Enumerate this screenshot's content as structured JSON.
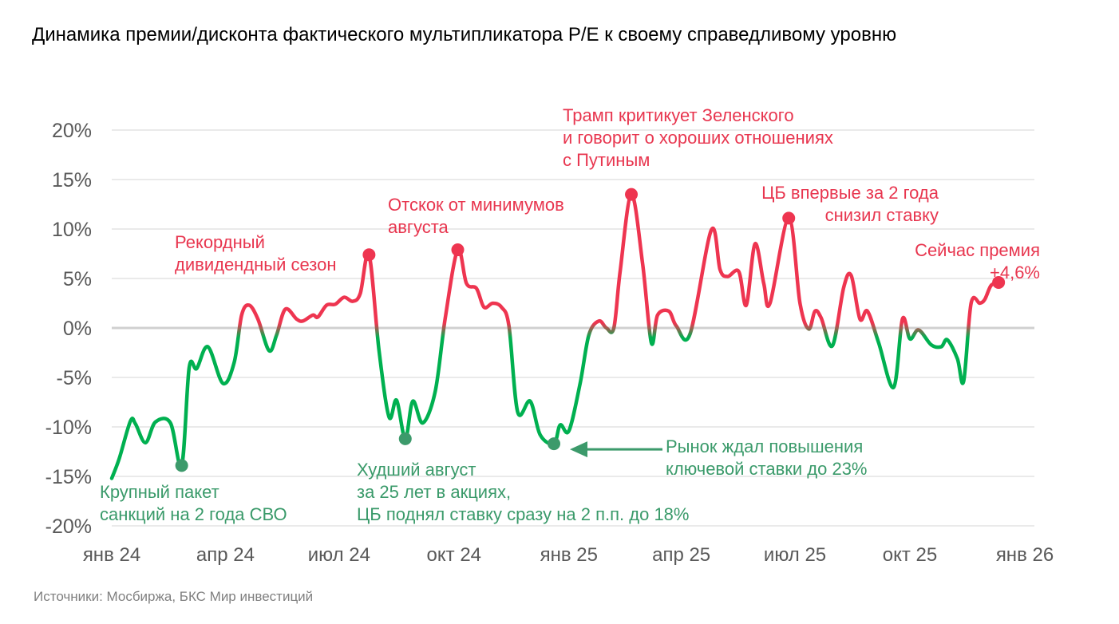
{
  "title": "Динамика премии/дисконта фактического мультипликатора P/E к своему справедливому уровню",
  "source": "Источники: Мосбиржа, БКС Мир инвестиций",
  "colors": {
    "positive": "#ee3550",
    "negative": "#00b050",
    "negative_marker": "#3c9a6b",
    "zero_line": "#d0d0d0",
    "grid": "#e4e4e4"
  },
  "chart_data": {
    "type": "line",
    "title": "Динамика премии/дисконта фактического мультипликатора P/E к своему справедливому уровню",
    "xlabel": "",
    "ylabel": "",
    "ylim": [
      -20,
      20
    ],
    "xlim": [
      "2024-01-01",
      "2026-01-01"
    ],
    "grid": true,
    "y_ticks": [
      "20%",
      "15%",
      "10%",
      "5%",
      "0%",
      "-5%",
      "-10%",
      "-15%",
      "-20%"
    ],
    "y_tick_values": [
      20,
      15,
      10,
      5,
      0,
      -5,
      -10,
      -15,
      -20
    ],
    "x_ticks": [
      "янв 24",
      "апр 24",
      "июл 24",
      "окт 24",
      "янв 25",
      "апр 25",
      "июл 25",
      "окт 25",
      "янв 26"
    ],
    "x_tick_dates": [
      "2024-01-01",
      "2024-04-01",
      "2024-07-01",
      "2024-10-01",
      "2025-01-01",
      "2025-04-01",
      "2025-07-01",
      "2025-10-01",
      "2026-01-01"
    ],
    "series": [
      {
        "x": [
          "2024-01-01",
          "2024-01-07",
          "2024-01-16",
          "2024-01-20",
          "2024-01-28",
          "2024-02-05",
          "2024-02-17",
          "2024-02-26",
          "2024-03-03",
          "2024-03-09",
          "2024-03-18",
          "2024-03-30",
          "2024-04-08",
          "2024-04-14",
          "2024-04-20",
          "2024-04-27",
          "2024-05-06",
          "2024-05-12",
          "2024-05-19",
          "2024-05-28",
          "2024-06-02",
          "2024-06-10",
          "2024-06-14",
          "2024-06-21",
          "2024-06-28",
          "2024-07-05",
          "2024-07-12",
          "2024-07-18",
          "2024-07-25",
          "2024-08-02",
          "2024-08-10",
          "2024-08-16",
          "2024-08-23",
          "2024-08-29",
          "2024-09-06",
          "2024-09-16",
          "2024-09-24",
          "2024-10-04",
          "2024-10-11",
          "2024-10-19",
          "2024-10-25",
          "2024-11-01",
          "2024-11-08",
          "2024-11-14",
          "2024-11-21",
          "2024-12-01",
          "2024-12-09",
          "2024-12-20",
          "2024-12-25",
          "2025-01-01",
          "2025-01-10",
          "2025-01-17",
          "2025-01-25",
          "2025-01-31",
          "2025-02-06",
          "2025-02-11",
          "2025-02-20",
          "2025-03-01",
          "2025-03-08",
          "2025-03-13",
          "2025-03-22",
          "2025-03-28",
          "2025-04-08",
          "2025-04-25",
          "2025-05-02",
          "2025-05-08",
          "2025-05-17",
          "2025-05-23",
          "2025-05-30",
          "2025-06-06",
          "2025-06-11",
          "2025-06-26",
          "2025-07-05",
          "2025-07-12",
          "2025-07-17",
          "2025-07-22",
          "2025-07-31",
          "2025-08-09",
          "2025-08-15",
          "2025-08-22",
          "2025-08-28",
          "2025-09-06",
          "2025-09-18",
          "2025-09-25",
          "2025-10-01",
          "2025-10-08",
          "2025-10-18",
          "2025-10-26",
          "2025-10-31",
          "2025-11-08",
          "2025-11-13",
          "2025-11-19",
          "2025-11-26",
          "2025-11-30",
          "2025-12-05",
          "2025-12-11"
        ],
        "y": [
          -15.2,
          -13.2,
          -9.4,
          -9.7,
          -11.6,
          -9.5,
          -9.6,
          -13.9,
          -4.0,
          -4.1,
          -1.9,
          -5.6,
          -3.5,
          1.3,
          2.3,
          0.9,
          -2.3,
          -0.7,
          1.9,
          0.9,
          0.7,
          1.3,
          1.1,
          2.3,
          2.4,
          3.1,
          2.7,
          3.5,
          7.4,
          -2.3,
          -9.0,
          -7.3,
          -11.2,
          -7.4,
          -9.6,
          -6.4,
          1.0,
          7.9,
          4.5,
          4.0,
          2.1,
          2.5,
          2.1,
          0.2,
          -8.5,
          -7.4,
          -10.8,
          -11.7,
          -9.8,
          -10.4,
          -5.6,
          -0.7,
          0.7,
          0.0,
          0.0,
          5.7,
          13.5,
          6.5,
          -1.5,
          1.3,
          1.7,
          0.2,
          -0.6,
          9.9,
          5.9,
          5.2,
          5.7,
          2.3,
          8.5,
          4.5,
          2.5,
          11.1,
          2.5,
          -0.1,
          1.7,
          1.0,
          -1.8,
          4.1,
          5.3,
          0.9,
          1.7,
          -1.5,
          -6.0,
          0.9,
          -1.1,
          -0.2,
          -1.7,
          -1.9,
          -1.2,
          -3.1,
          -5.4,
          2.5,
          2.5,
          2.9,
          4.3,
          4.6
        ]
      }
    ],
    "annotations": [
      {
        "id": "sanctions",
        "date": "2024-02-26",
        "value": -13.9,
        "color": "green",
        "lines": [
          "Крупный пакет",
          "санкций на 2 года СВО"
        ]
      },
      {
        "id": "dividends",
        "date": "2024-07-25",
        "value": 7.4,
        "color": "red",
        "lines": [
          "Рекордный",
          "дивидендный сезон"
        ]
      },
      {
        "id": "august",
        "date": "2024-08-23",
        "value": -11.2,
        "color": "green",
        "lines": [
          "Худший август",
          "за 25 лет в акциях,",
          "ЦБ поднял ставку сразу на 2 п.п. до 18%"
        ]
      },
      {
        "id": "rebound",
        "date": "2024-10-04",
        "value": 7.9,
        "color": "red",
        "lines": [
          "Отскок от минимумов",
          "августа"
        ]
      },
      {
        "id": "rate23",
        "date": "2024-12-20",
        "value": -11.7,
        "color": "green",
        "arrow": true,
        "lines": [
          "Рынок ждал повышения",
          "ключевой ставки до 23%"
        ]
      },
      {
        "id": "trump",
        "date": "2025-02-20",
        "value": 13.5,
        "color": "red",
        "lines": [
          "Трамп критикует Зеленского",
          "и говорит о хороших отношениях",
          "с Путиным"
        ]
      },
      {
        "id": "cbcut",
        "date": "2025-06-26",
        "value": 11.1,
        "color": "red",
        "lines": [
          "ЦБ впервые за 2 года",
          "снизил ставку"
        ]
      },
      {
        "id": "now",
        "date": "2025-12-11",
        "value": 4.6,
        "color": "red",
        "lines": [
          "Сейчас премия",
          "+4,6%"
        ]
      }
    ]
  }
}
